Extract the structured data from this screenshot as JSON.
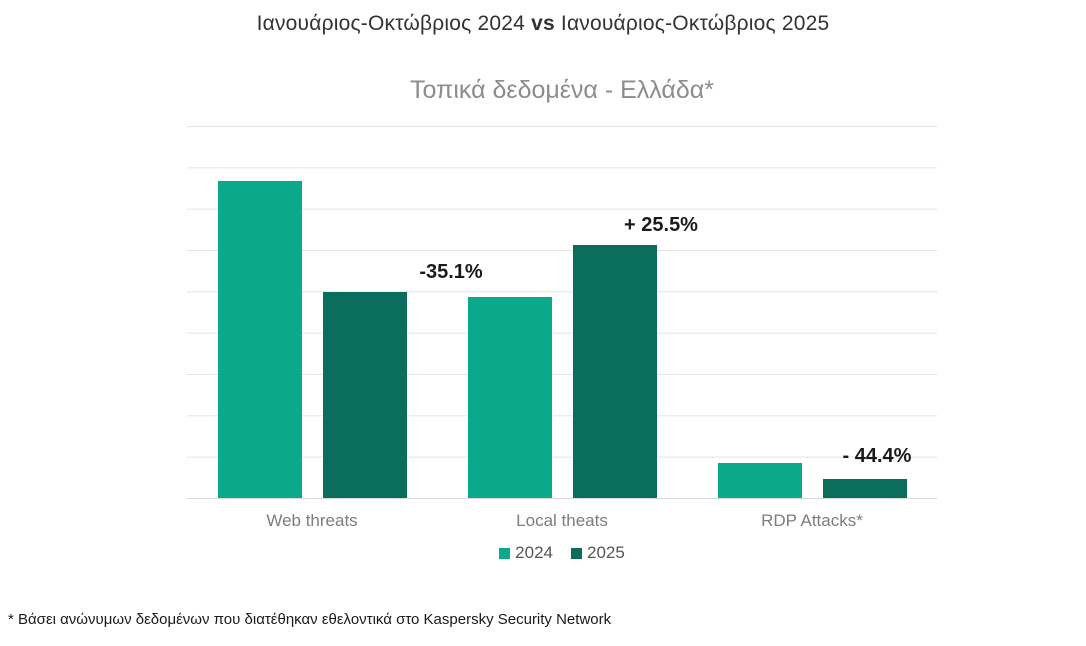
{
  "header": {
    "title_left": "Ιανουάριος-Οκτώβριος 2024",
    "title_vs": "vs",
    "title_right": "Ιανουάριος-Οκτώβριος 2025",
    "subtitle": "Τοπικά δεδομένα - Ελλάδα*"
  },
  "chart_data": {
    "type": "bar",
    "title": "Ιανουάριος-Οκτώβριος 2024 vs Ιανουάριος-Οκτώβριος 2025",
    "subtitle": "Τοπικά δεδομένα - Ελλάδα*",
    "categories": [
      "Web threats",
      "Local theats",
      "RDP Attacks*"
    ],
    "series": [
      {
        "name": "2024",
        "color": "#0ba98c",
        "values": [
          85.2,
          54.0,
          9.4
        ]
      },
      {
        "name": "2025",
        "color": "#0b6e5c",
        "values": [
          55.4,
          68.0,
          5.1
        ]
      }
    ],
    "values_unit": "relative bar height, % of plot height (y-axis tick labels not shown)",
    "annotations": [
      {
        "label": "-35.1%",
        "category": "Web threats"
      },
      {
        "label": "+ 25.5%",
        "category": "Local theats"
      },
      {
        "label": "- 44.4%",
        "category": "RDP Attacks*"
      }
    ],
    "xlabel": "",
    "ylabel": "",
    "grid": "horizontal, 9 intervals, light gray",
    "legend_position": "bottom-center"
  },
  "legend": {
    "items": [
      {
        "label": "2024",
        "color": "#0ba98c"
      },
      {
        "label": "2025",
        "color": "#0b6e5c"
      }
    ]
  },
  "footnote": "* Βάσει ανώνυμων δεδομένων που διατέθηκαν εθελοντικά στο Kaspersky Security Network"
}
